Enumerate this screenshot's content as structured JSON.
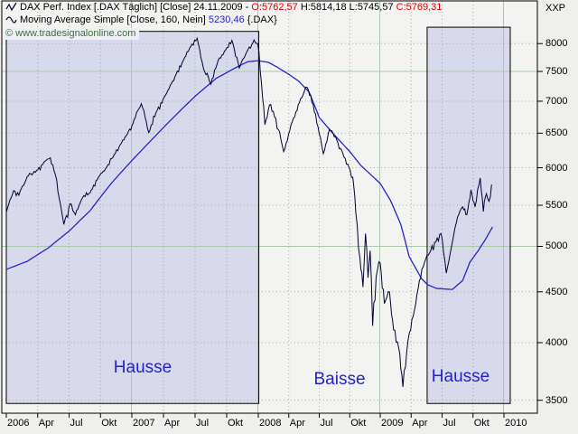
{
  "header": {
    "instrument_line_prefix": "DAX Perf. Index [.DAX  Täglich] [Close] 24.11.2009 - ",
    "open_value": "O:5762,57",
    "high_low_values": " H:5814,18 L:5745,57 ",
    "close_value": "C:5769,31",
    "indicator_line_prefix": "Moving Average Simple [Close, 160, Nein] ",
    "indicator_value": "5230,46",
    "indicator_line_suffix": " {.DAX}",
    "watermark": "© www.tradesignalonline.com",
    "top_right_label": "XXP"
  },
  "annotations": {
    "phase_left": "Hausse",
    "phase_middle": "Baisse",
    "phase_right": "Hausse"
  },
  "colors": {
    "price": "#000030",
    "moving_average": "#2424cc",
    "phase_text": "#2222cc",
    "region_fill": "#d9d9ec",
    "region_border": "#000000",
    "grid_dotted": "#a8a8a8",
    "grid_green": "#adc9ad",
    "plot_bg": "#f3f3f1",
    "open_close_text": "#e00000",
    "indicator_text": "#2222cc"
  },
  "chart_data": {
    "type": "line",
    "title": "DAX Perf. Index [.DAX Täglich] [Close] with Moving Average Simple 160",
    "x_axis": {
      "unit": "months since 2006-01",
      "ticks": [
        {
          "label": "2006",
          "m": 0
        },
        {
          "label": "Apr",
          "m": 3
        },
        {
          "label": "Jul",
          "m": 6
        },
        {
          "label": "Okt",
          "m": 9
        },
        {
          "label": "2007",
          "m": 12
        },
        {
          "label": "Apr",
          "m": 15
        },
        {
          "label": "Jul",
          "m": 18
        },
        {
          "label": "Okt",
          "m": 21
        },
        {
          "label": "2008",
          "m": 24
        },
        {
          "label": "Apr",
          "m": 27
        },
        {
          "label": "Jul",
          "m": 30
        },
        {
          "label": "Okt",
          "m": 33
        },
        {
          "label": "2009",
          "m": 36
        },
        {
          "label": "Apr",
          "m": 39
        },
        {
          "label": "Jul",
          "m": 42
        },
        {
          "label": "Okt",
          "m": 45
        },
        {
          "label": "2010",
          "m": 48
        }
      ],
      "year_grid_months": [
        12,
        24,
        36,
        48
      ],
      "minor_grid_months": [
        3,
        6,
        9,
        15,
        18,
        21,
        27,
        30,
        33,
        39,
        42,
        45
      ]
    },
    "y_axis": {
      "scale": "log",
      "ticks": [
        8000,
        7500,
        7000,
        6500,
        6000,
        5500,
        5000,
        4500,
        4000,
        3500
      ],
      "solid_green_levels": [
        7500,
        5000
      ],
      "range": [
        3430,
        8350
      ]
    },
    "regions": [
      {
        "label": "Hausse",
        "m0": 0.0,
        "m1": 24.05,
        "v_top": 8230,
        "v_bottom": 3474
      },
      {
        "label": "Hausse",
        "m0": 40.55,
        "m1": 48.61,
        "v_top": 8310,
        "v_bottom": 3474
      }
    ],
    "series": [
      {
        "name": "DAX Close",
        "style": "jagged",
        "points": [
          [
            0,
            5410
          ],
          [
            0.7,
            5690
          ],
          [
            1.2,
            5630
          ],
          [
            2,
            5880
          ],
          [
            3,
            5970
          ],
          [
            3.6,
            6080
          ],
          [
            4.2,
            6140
          ],
          [
            4.7,
            5900
          ],
          [
            5.5,
            5260
          ],
          [
            6.1,
            5520
          ],
          [
            6.6,
            5380
          ],
          [
            7.3,
            5600
          ],
          [
            8,
            5660
          ],
          [
            8.8,
            5870
          ],
          [
            9.6,
            6010
          ],
          [
            10.3,
            6180
          ],
          [
            11,
            6350
          ],
          [
            11.6,
            6500
          ],
          [
            12,
            6610
          ],
          [
            12.9,
            6960
          ],
          [
            13.6,
            6510
          ],
          [
            14.3,
            6820
          ],
          [
            15.2,
            7100
          ],
          [
            16.2,
            7450
          ],
          [
            17,
            7740
          ],
          [
            17.6,
            7950
          ],
          [
            18.2,
            8100
          ],
          [
            18.8,
            7550
          ],
          [
            19.5,
            7280
          ],
          [
            20.2,
            7700
          ],
          [
            20.9,
            7880
          ],
          [
            21.5,
            8060
          ],
          [
            22.2,
            7560
          ],
          [
            22.9,
            7850
          ],
          [
            23.6,
            8070
          ],
          [
            23.95,
            8000
          ],
          [
            24.3,
            7320
          ],
          [
            24.65,
            6630
          ],
          [
            25.1,
            6940
          ],
          [
            25.6,
            6750
          ],
          [
            26.1,
            6520
          ],
          [
            26.5,
            6230
          ],
          [
            27.1,
            6540
          ],
          [
            27.7,
            6830
          ],
          [
            28.4,
            7100
          ],
          [
            28.8,
            7230
          ],
          [
            29.4,
            6950
          ],
          [
            30,
            6490
          ],
          [
            30.4,
            6200
          ],
          [
            31,
            6560
          ],
          [
            31.6,
            6450
          ],
          [
            32.2,
            6250
          ],
          [
            32.8,
            6050
          ],
          [
            33.3,
            5870
          ],
          [
            33.6,
            5400
          ],
          [
            34,
            4870
          ],
          [
            34.3,
            4550
          ],
          [
            34.55,
            5150
          ],
          [
            34.8,
            4650
          ],
          [
            35,
            4950
          ],
          [
            35.25,
            4160
          ],
          [
            35.6,
            4660
          ],
          [
            36,
            4810
          ],
          [
            36.4,
            4380
          ],
          [
            36.9,
            4500
          ],
          [
            37.3,
            4120
          ],
          [
            37.8,
            3950
          ],
          [
            38.2,
            3610
          ],
          [
            38.7,
            4020
          ],
          [
            39.2,
            4250
          ],
          [
            39.8,
            4620
          ],
          [
            40.3,
            4820
          ],
          [
            40.9,
            4950
          ],
          [
            41.4,
            5050
          ],
          [
            41.9,
            5150
          ],
          [
            42.4,
            4700
          ],
          [
            43,
            5050
          ],
          [
            43.5,
            5350
          ],
          [
            44,
            5480
          ],
          [
            44.4,
            5380
          ],
          [
            44.8,
            5700
          ],
          [
            45.2,
            5480
          ],
          [
            45.7,
            5860
          ],
          [
            46,
            5420
          ],
          [
            46.3,
            5650
          ],
          [
            46.55,
            5550
          ],
          [
            46.8,
            5769
          ]
        ]
      },
      {
        "name": "Moving Average Simple 160",
        "style": "smooth",
        "points": [
          [
            0,
            4740
          ],
          [
            2,
            4830
          ],
          [
            4,
            4980
          ],
          [
            6,
            5180
          ],
          [
            8,
            5430
          ],
          [
            10,
            5780
          ],
          [
            12,
            6100
          ],
          [
            14,
            6420
          ],
          [
            16,
            6750
          ],
          [
            18,
            7080
          ],
          [
            20,
            7380
          ],
          [
            22,
            7580
          ],
          [
            23,
            7670
          ],
          [
            24,
            7690
          ],
          [
            25,
            7660
          ],
          [
            26,
            7560
          ],
          [
            27,
            7450
          ],
          [
            28,
            7330
          ],
          [
            29,
            7150
          ],
          [
            30,
            6740
          ],
          [
            31.5,
            6470
          ],
          [
            33,
            6230
          ],
          [
            34.1,
            6030
          ],
          [
            36,
            5785
          ],
          [
            37,
            5560
          ],
          [
            38,
            5260
          ],
          [
            38.8,
            4885
          ],
          [
            40,
            4640
          ],
          [
            40.6,
            4575
          ],
          [
            41.5,
            4535
          ],
          [
            43,
            4525
          ],
          [
            44,
            4620
          ],
          [
            44.7,
            4820
          ],
          [
            45.5,
            4950
          ],
          [
            46.2,
            5080
          ],
          [
            46.9,
            5230
          ]
        ]
      }
    ]
  }
}
